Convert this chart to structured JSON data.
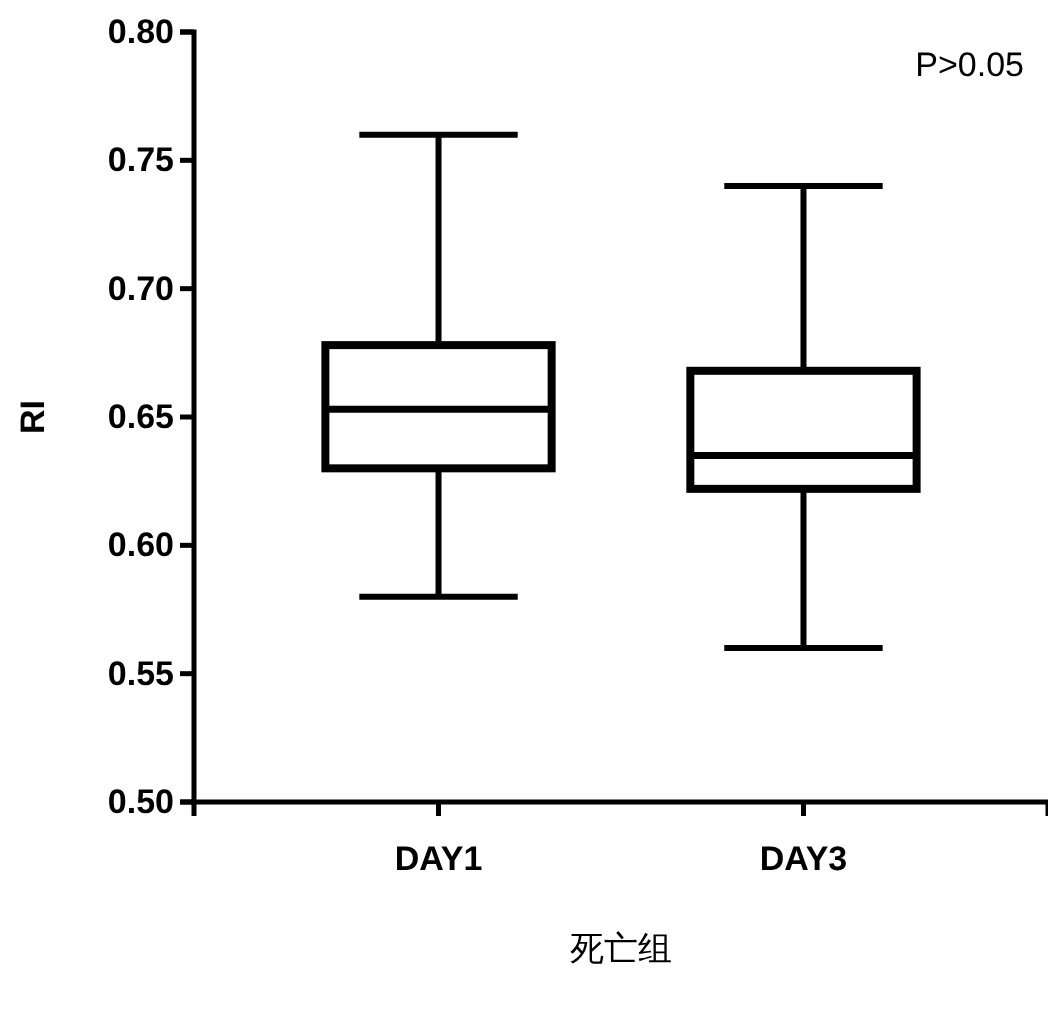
{
  "chart_data": {
    "type": "box",
    "categories": [
      "DAY1",
      "DAY3"
    ],
    "boxes": [
      {
        "low": 0.58,
        "q1": 0.63,
        "median": 0.653,
        "q3": 0.678,
        "high": 0.76
      },
      {
        "low": 0.56,
        "q1": 0.622,
        "median": 0.635,
        "q3": 0.668,
        "high": 0.74
      }
    ],
    "ylim": [
      0.5,
      0.8
    ],
    "yticks": [
      {
        "value": 0.5,
        "label": "0.50"
      },
      {
        "value": 0.55,
        "label": "0.55"
      },
      {
        "value": 0.6,
        "label": "0.60"
      },
      {
        "value": 0.65,
        "label": "0.65"
      },
      {
        "value": 0.7,
        "label": "0.70"
      },
      {
        "value": 0.75,
        "label": "0.75"
      },
      {
        "value": 0.8,
        "label": "0.80"
      }
    ],
    "ylabel": "RI",
    "xlabel": "死亡组",
    "annotations": [
      "P>0.05"
    ],
    "grid": false
  }
}
